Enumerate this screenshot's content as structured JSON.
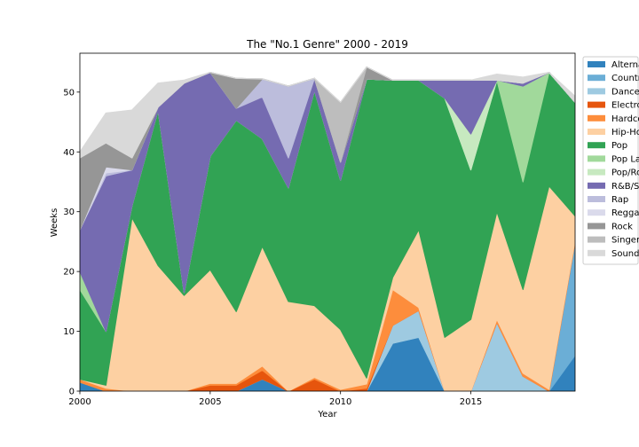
{
  "chart_data": {
    "type": "area",
    "stacked": true,
    "title": "The \"No.1 Genre\" 2000 - 2019",
    "xlabel": "Year",
    "ylabel": "Weeks",
    "xlim": [
      2000,
      2019
    ],
    "ylim": [
      0,
      56.5
    ],
    "xticks": [
      2000,
      2005,
      2010,
      2015
    ],
    "yticks": [
      0,
      10,
      20,
      30,
      40,
      50
    ],
    "legend_position": "upper-right-outside",
    "x": [
      2000,
      2001,
      2002,
      2003,
      2004,
      2005,
      2006,
      2007,
      2008,
      2009,
      2010,
      2011,
      2012,
      2013,
      2014,
      2015,
      2016,
      2017,
      2018,
      2019
    ],
    "series": [
      {
        "name": "Alternative",
        "color": "#3182bd",
        "values": [
          1.5,
          0,
          0,
          0,
          0,
          0,
          0,
          2,
          0,
          0,
          0,
          0,
          8,
          9,
          0,
          0,
          0,
          0,
          0,
          6
        ]
      },
      {
        "name": "Country",
        "color": "#6baed6",
        "values": [
          0,
          0,
          0,
          0,
          0,
          0,
          0,
          0,
          0,
          0,
          0,
          0,
          0,
          0,
          0,
          0,
          0,
          0,
          0,
          19
        ]
      },
      {
        "name": "Dance",
        "color": "#9ecae1",
        "values": [
          0,
          0,
          0,
          0,
          0,
          0,
          0,
          0,
          0,
          0,
          0,
          0,
          3,
          4.5,
          0,
          0,
          11.5,
          2.5,
          0,
          0
        ]
      },
      {
        "name": "Electronic",
        "color": "#e6550d",
        "values": [
          0,
          0,
          0,
          0,
          0,
          1,
          1,
          1.5,
          0,
          2,
          0,
          0.5,
          0,
          0,
          0,
          0,
          0,
          0,
          0,
          0
        ]
      },
      {
        "name": "Hardcore",
        "color": "#fd8d3c",
        "values": [
          0.5,
          0.5,
          0,
          0,
          0,
          0.3,
          0.3,
          0.7,
          0,
          0.3,
          0.3,
          0.7,
          6,
          0.5,
          0,
          0,
          0.5,
          0.5,
          0.3,
          0.3
        ]
      },
      {
        "name": "Hip-Hop",
        "color": "#fdd0a2",
        "values": [
          0,
          0.5,
          29,
          21,
          16,
          19,
          12,
          20,
          15,
          12,
          10,
          1,
          2,
          13,
          9,
          12,
          18,
          14,
          34,
          4
        ]
      },
      {
        "name": "Pop",
        "color": "#31a354",
        "values": [
          15,
          9,
          2,
          26,
          0.5,
          19,
          32,
          18,
          19,
          36,
          25,
          50,
          33,
          25,
          40,
          25,
          22,
          18,
          19,
          19
        ]
      },
      {
        "name": "Pop Latino",
        "color": "#a1d99b",
        "values": [
          3,
          0,
          0,
          0,
          0,
          0,
          0,
          0,
          0,
          0,
          0,
          0,
          0,
          0,
          0,
          0,
          0,
          16,
          0,
          0
        ]
      },
      {
        "name": "Pop/Rock",
        "color": "#c7e9c0",
        "values": [
          0,
          0,
          0,
          0,
          0,
          0,
          0,
          0,
          0,
          0,
          0,
          0,
          0,
          0,
          0,
          6,
          0,
          0,
          0,
          0
        ]
      },
      {
        "name": "R&B/Soul",
        "color": "#756bb1",
        "values": [
          7,
          26,
          6,
          0.5,
          35,
          14,
          2,
          7,
          5,
          2,
          3,
          0,
          0,
          0,
          3,
          9,
          0,
          0.5,
          0,
          0
        ]
      },
      {
        "name": "Rap",
        "color": "#bcbddc",
        "values": [
          0,
          0.5,
          0,
          0,
          0,
          0,
          0,
          3,
          12,
          0,
          0,
          0,
          0,
          0,
          0,
          0,
          0,
          0,
          0,
          0
        ]
      },
      {
        "name": "Reggae",
        "color": "#dadaeb",
        "values": [
          0,
          1,
          0,
          0,
          0,
          0,
          0,
          0,
          0,
          0,
          0,
          0,
          0,
          0,
          0,
          0,
          0,
          0,
          0,
          0
        ]
      },
      {
        "name": "Rock",
        "color": "#969696",
        "values": [
          12,
          4,
          2,
          0,
          0,
          0,
          5,
          0,
          0,
          0,
          0,
          2,
          0,
          0,
          0,
          0,
          0,
          0,
          0,
          0
        ]
      },
      {
        "name": "Singer",
        "color": "#bdbdbd",
        "values": [
          0,
          0,
          0,
          0,
          0,
          0,
          0,
          0,
          0,
          0,
          10,
          0,
          0,
          0,
          0,
          0,
          0,
          0,
          0,
          0
        ]
      },
      {
        "name": "Soundtrack",
        "color": "#d9d9d9",
        "values": [
          1,
          5,
          8,
          4,
          0.5,
          0,
          0,
          0,
          0,
          0,
          0,
          0,
          0,
          0,
          0,
          0,
          1,
          1,
          0,
          1
        ]
      }
    ]
  }
}
